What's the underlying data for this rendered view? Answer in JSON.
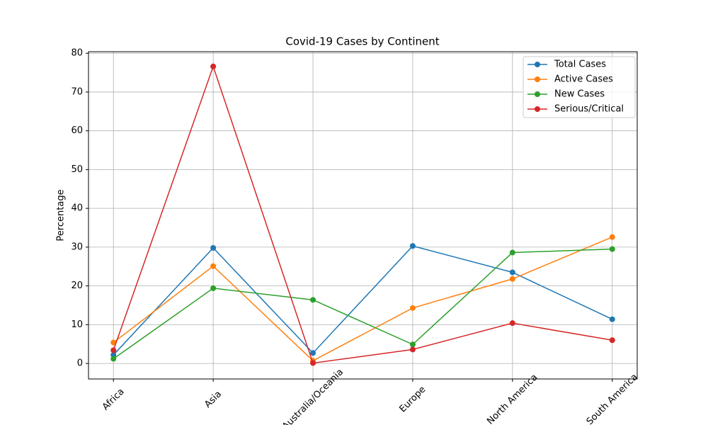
{
  "chart_data": {
    "type": "line",
    "title": "Covid-19 Cases by Continent",
    "y_label": "Percentage",
    "categories": [
      "Africa",
      "Asia",
      "Australia/Oceania",
      "Europe",
      "North America",
      "South America"
    ],
    "series": [
      {
        "name": "Total Cases",
        "color": "#1f77b4",
        "values": [
          2.2,
          29.8,
          2.7,
          30.3,
          23.5,
          11.4
        ]
      },
      {
        "name": "Active Cases",
        "color": "#ff7f0e",
        "values": [
          5.4,
          25.1,
          0.7,
          14.3,
          21.8,
          32.6
        ]
      },
      {
        "name": "New Cases",
        "color": "#2ca02c",
        "values": [
          1.2,
          19.4,
          16.4,
          4.9,
          28.6,
          29.5
        ]
      },
      {
        "name": "Serious/Critical",
        "color": "#d62728",
        "values": [
          3.4,
          76.6,
          0.1,
          3.6,
          10.4,
          6.0
        ]
      }
    ],
    "ylim": [
      -4,
      80.4
    ],
    "yticks": [
      0,
      10,
      20,
      30,
      40,
      50,
      60,
      70,
      80
    ],
    "grid": true,
    "legend": "upper-right"
  }
}
